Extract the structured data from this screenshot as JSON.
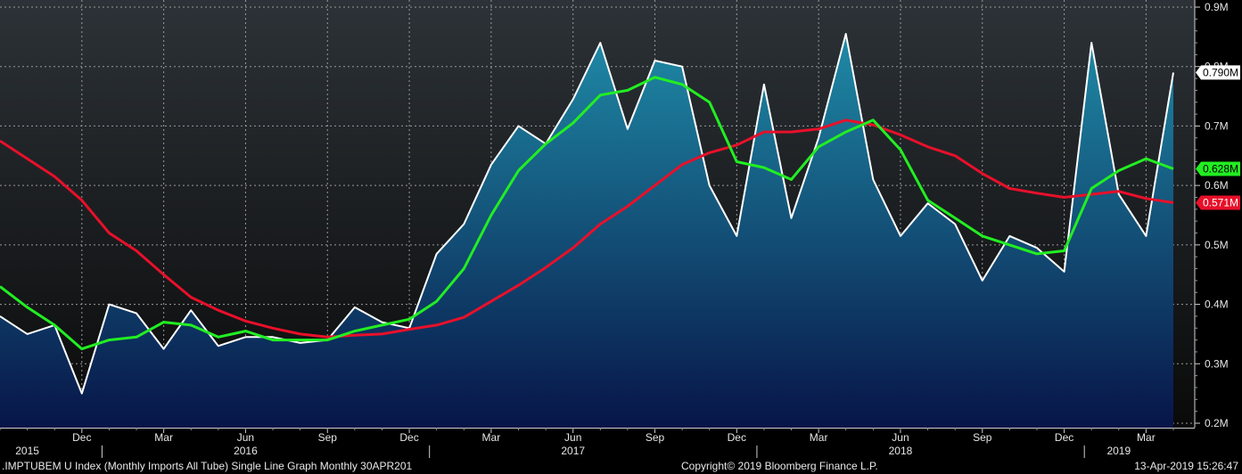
{
  "chart_data": {
    "type": "area",
    "title": "",
    "xlabel": "",
    "ylabel": "",
    "ylim": [
      0.2,
      0.9
    ],
    "y_ticks": [
      "0.2M",
      "0.3M",
      "0.4M",
      "0.5M",
      "0.6M",
      "0.7M",
      "0.8M",
      "0.9M"
    ],
    "y_tick_values": [
      0.2,
      0.3,
      0.4,
      0.5,
      0.6,
      0.7,
      0.8,
      0.9
    ],
    "x_month_ticks": [
      "Dec",
      "Mar",
      "Jun",
      "Sep",
      "Dec",
      "Mar",
      "Jun",
      "Sep",
      "Dec",
      "Mar",
      "Jun",
      "Sep",
      "Dec",
      "Mar"
    ],
    "x_month_tick_dates": [
      "2015-12",
      "2016-03",
      "2016-06",
      "2016-09",
      "2016-12",
      "2017-03",
      "2017-06",
      "2017-09",
      "2017-12",
      "2018-03",
      "2018-06",
      "2018-09",
      "2018-12",
      "2019-03"
    ],
    "x_year_labels": [
      "2015",
      "2016",
      "2017",
      "2018",
      "2019"
    ],
    "x_year_label_dates": [
      "2015-10",
      "2016-06",
      "2017-06",
      "2018-06",
      "2019-02"
    ],
    "x_range": [
      "2015-09",
      "2019-04"
    ],
    "grid": true,
    "x": [
      "2015-09",
      "2015-10",
      "2015-11",
      "2015-12",
      "2016-01",
      "2016-02",
      "2016-03",
      "2016-04",
      "2016-05",
      "2016-06",
      "2016-07",
      "2016-08",
      "2016-09",
      "2016-10",
      "2016-11",
      "2016-12",
      "2017-01",
      "2017-02",
      "2017-03",
      "2017-04",
      "2017-05",
      "2017-06",
      "2017-07",
      "2017-08",
      "2017-09",
      "2017-10",
      "2017-11",
      "2017-12",
      "2018-01",
      "2018-02",
      "2018-03",
      "2018-04",
      "2018-05",
      "2018-06",
      "2018-07",
      "2018-08",
      "2018-09",
      "2018-10",
      "2018-11",
      "2018-12",
      "2019-01",
      "2019-02",
      "2019-03",
      "2019-04"
    ],
    "series": [
      {
        "role": "main",
        "style": "area",
        "color": "#ffffff",
        "values": [
          0.38,
          0.35,
          0.365,
          0.25,
          0.4,
          0.385,
          0.325,
          0.39,
          0.33,
          0.345,
          0.345,
          0.335,
          0.34,
          0.395,
          0.37,
          0.36,
          0.485,
          0.535,
          0.635,
          0.7,
          0.67,
          0.745,
          0.84,
          0.695,
          0.81,
          0.8,
          0.6,
          0.515,
          0.77,
          0.545,
          0.68,
          0.855,
          0.61,
          0.515,
          0.57,
          0.535,
          0.44,
          0.515,
          0.495,
          0.455,
          0.84,
          0.585,
          0.515,
          0.79
        ],
        "last_label": "0.790M"
      },
      {
        "role": "moving-average-short",
        "style": "line",
        "color": "#22ee22",
        "values": [
          0.43,
          0.395,
          0.365,
          0.325,
          0.34,
          0.345,
          0.37,
          0.365,
          0.345,
          0.355,
          0.34,
          0.34,
          0.34,
          0.355,
          0.365,
          0.375,
          0.405,
          0.46,
          0.55,
          0.625,
          0.67,
          0.705,
          0.752,
          0.76,
          0.782,
          0.77,
          0.74,
          0.64,
          0.63,
          0.61,
          0.665,
          0.69,
          0.71,
          0.66,
          0.575,
          0.545,
          0.515,
          0.5,
          0.485,
          0.49,
          0.595,
          0.625,
          0.645,
          0.628
        ],
        "last_label": "0.628M"
      },
      {
        "role": "moving-average-long",
        "style": "line",
        "color": "#e8102a",
        "values": [
          0.675,
          0.645,
          0.615,
          0.575,
          0.52,
          0.49,
          0.45,
          0.412,
          0.39,
          0.372,
          0.36,
          0.35,
          0.345,
          0.348,
          0.35,
          0.358,
          0.365,
          0.378,
          0.405,
          0.432,
          0.462,
          0.495,
          0.535,
          0.565,
          0.6,
          0.635,
          0.655,
          0.668,
          0.69,
          0.69,
          0.695,
          0.71,
          0.702,
          0.685,
          0.665,
          0.65,
          0.62,
          0.595,
          0.587,
          0.58,
          0.585,
          0.59,
          0.578,
          0.571
        ],
        "last_label": "0.571M"
      }
    ]
  },
  "footer": {
    "left": ".IMPTUBEM U Index (Monthly Imports All Tube) Single Line Graph  Monthly 30APR201",
    "center": "Copyright© 2019 Bloomberg Finance L.P.",
    "right": "13-Apr-2019 15:26:47"
  },
  "colors": {
    "background_top": "#2c3237",
    "background_bottom": "#0a0a0a",
    "area_top": "#1f8aa6",
    "area_bottom": "#071548",
    "gridline": "#9a9a9a",
    "axis_panel": "#000000"
  }
}
